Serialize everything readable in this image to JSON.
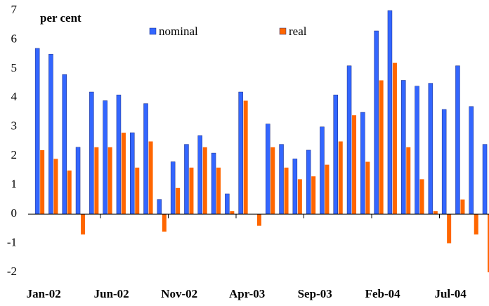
{
  "chart_data": {
    "type": "bar",
    "y_label": "per cent",
    "categories": [
      "Jan-02",
      null,
      null,
      null,
      null,
      "Jun-02",
      null,
      null,
      null,
      null,
      "Nov-02",
      null,
      null,
      null,
      null,
      "Apr-03",
      null,
      null,
      null,
      null,
      "Sep-03",
      null,
      null,
      null,
      null,
      "Feb-04",
      null,
      null,
      null,
      null,
      "Jul-04",
      null,
      null,
      null
    ],
    "series": [
      {
        "name": "nominal",
        "color": "#3366ff",
        "values": [
          5.7,
          5.5,
          4.8,
          2.3,
          4.2,
          3.9,
          4.1,
          2.8,
          3.8,
          0.5,
          1.8,
          2.4,
          2.7,
          2.1,
          0.7,
          4.2,
          0,
          3.1,
          2.4,
          1.9,
          2.2,
          3.0,
          4.1,
          5.1,
          3.5,
          6.3,
          7.0,
          4.6,
          4.4,
          4.5,
          3.6,
          5.1,
          3.7,
          2.4
        ]
      },
      {
        "name": "real",
        "color": "#ff6600",
        "values": [
          2.2,
          1.9,
          1.5,
          -0.7,
          2.3,
          2.3,
          2.8,
          1.6,
          2.5,
          -0.6,
          0.9,
          1.6,
          2.3,
          1.6,
          0.1,
          3.9,
          -0.4,
          2.3,
          1.6,
          1.2,
          1.3,
          1.7,
          2.5,
          3.4,
          1.8,
          4.6,
          5.2,
          2.3,
          1.2,
          0.1,
          -1.0,
          0.5,
          -0.7,
          -2.0
        ]
      }
    ],
    "ylim": [
      -2,
      7
    ],
    "yticks": [
      -2,
      -1,
      0,
      1,
      2,
      3,
      4,
      5,
      6,
      7
    ],
    "grid": false
  }
}
